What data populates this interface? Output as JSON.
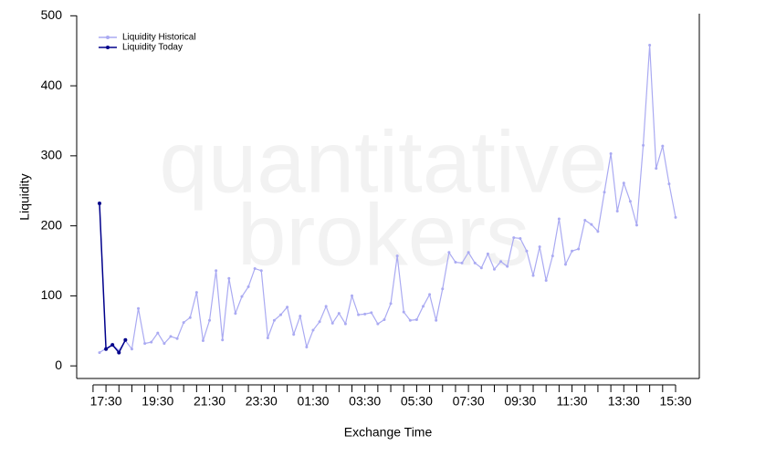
{
  "chart_data": {
    "type": "line",
    "watermark": [
      "quantitative",
      "brokers"
    ],
    "ylabel": "Liquidity",
    "xlabel": "Exchange Time",
    "categories": [
      null,
      "17:30",
      null,
      null,
      null,
      null,
      null,
      null,
      null,
      "19:30",
      null,
      null,
      null,
      null,
      null,
      null,
      null,
      "21:30",
      null,
      null,
      null,
      null,
      null,
      null,
      null,
      "23:30",
      null,
      null,
      null,
      null,
      null,
      null,
      null,
      "01:30",
      null,
      null,
      null,
      null,
      null,
      null,
      null,
      "03:30",
      null,
      null,
      null,
      null,
      null,
      null,
      null,
      "05:30",
      null,
      null,
      null,
      null,
      null,
      null,
      null,
      "07:30",
      null,
      null,
      null,
      null,
      null,
      null,
      null,
      "09:30",
      null,
      null,
      null,
      null,
      null,
      null,
      null,
      "11:30",
      null,
      null,
      null,
      null,
      null,
      null,
      null,
      "13:30",
      null,
      null,
      null,
      null,
      null,
      null,
      null,
      "15:30"
    ],
    "series": [
      {
        "name": "Liquidity Historical",
        "color": "#aaaaf2",
        "values": [
          19,
          25,
          30,
          22,
          36,
          24,
          82,
          32,
          34,
          47,
          32,
          42,
          39,
          62,
          69,
          105,
          36,
          65,
          136,
          37,
          125,
          75,
          99,
          113,
          139,
          136,
          40,
          65,
          73,
          84,
          45,
          71,
          27,
          51,
          63,
          85,
          61,
          75,
          60,
          100,
          73,
          74,
          76,
          60,
          66,
          89,
          157,
          77,
          65,
          66,
          85,
          102,
          65,
          110,
          162,
          148,
          147,
          162,
          147,
          140,
          160,
          138,
          149,
          142,
          183,
          182,
          164,
          129,
          170,
          122,
          157,
          210,
          145,
          164,
          167,
          208,
          202,
          192,
          248,
          303,
          221,
          261,
          235,
          201,
          315,
          458,
          282,
          314,
          260,
          212
        ]
      },
      {
        "name": "Liquidity Today",
        "color": "#00008b",
        "values": [
          232,
          24,
          30,
          19,
          37,
          null,
          null,
          null,
          null,
          null,
          null,
          null,
          null,
          null,
          null,
          null,
          null,
          null,
          null,
          null,
          null,
          null,
          null,
          null,
          null,
          null,
          null,
          null,
          null,
          null,
          null,
          null,
          null,
          null,
          null,
          null,
          null,
          null,
          null,
          null,
          null,
          null,
          null,
          null,
          null,
          null,
          null,
          null,
          null,
          null,
          null,
          null,
          null,
          null,
          null,
          null,
          null,
          null,
          null,
          null,
          null,
          null,
          null,
          null,
          null,
          null,
          null,
          null,
          null,
          null,
          null,
          null,
          null,
          null,
          null,
          null,
          null,
          null,
          null,
          null,
          null,
          null,
          null,
          null,
          null,
          null,
          null,
          null,
          null,
          null
        ]
      }
    ],
    "ylim": [
      -18,
      503
    ],
    "yticks": [
      0,
      100,
      200,
      300,
      400,
      500
    ],
    "legend": "top-left"
  }
}
